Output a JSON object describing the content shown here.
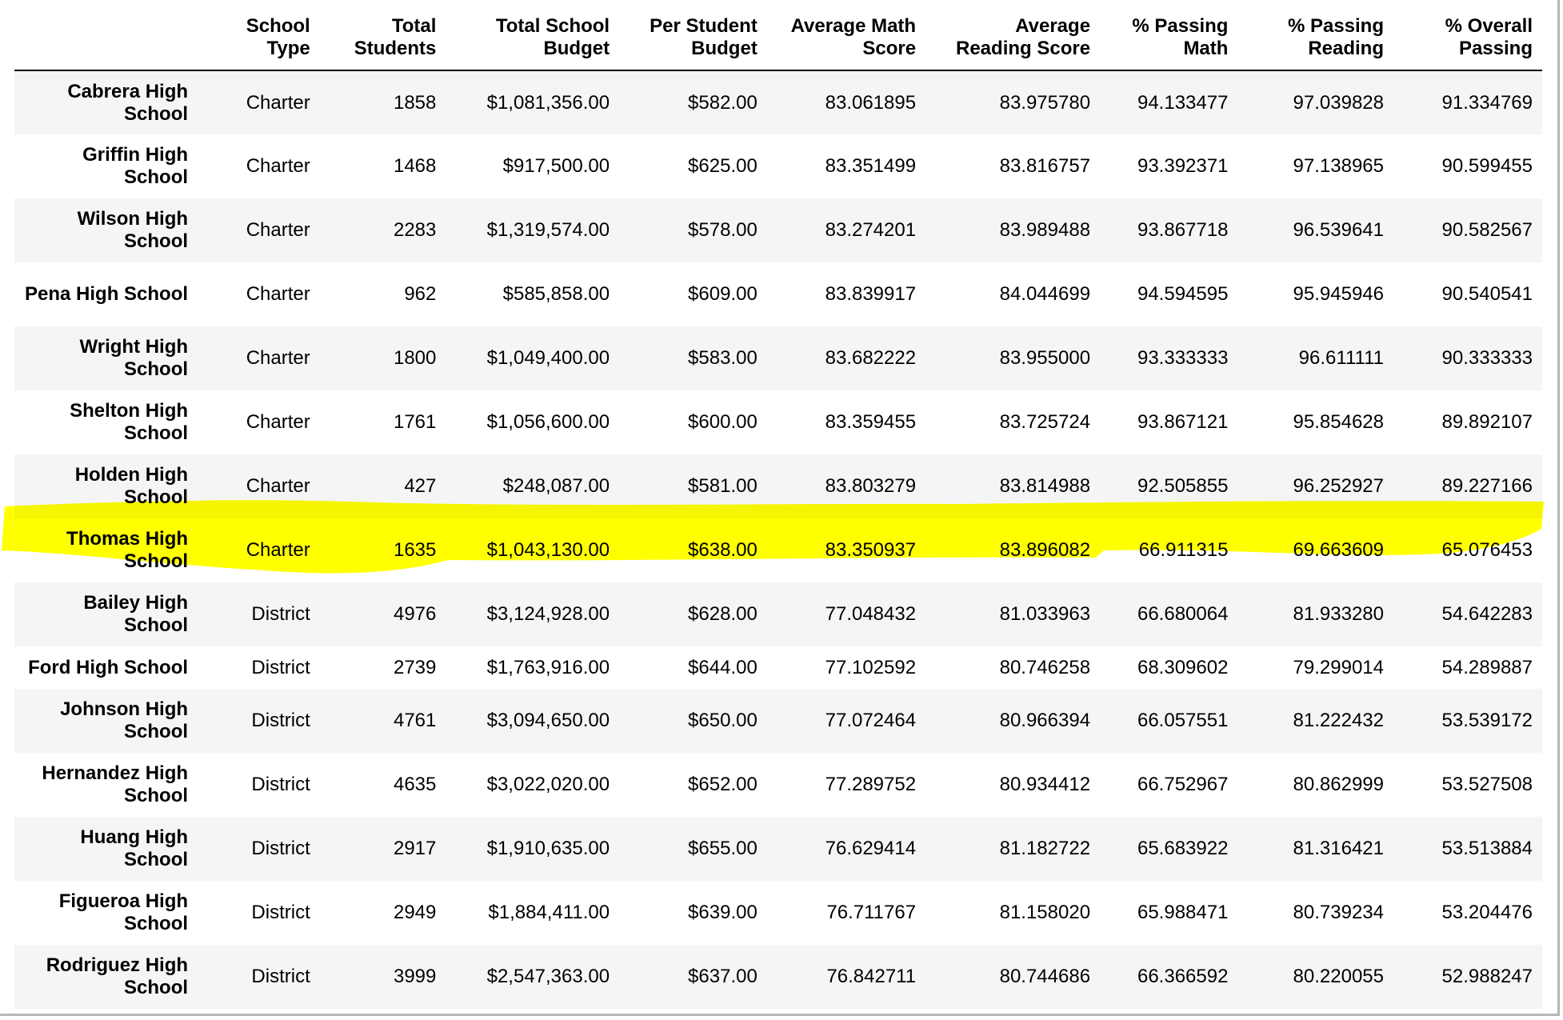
{
  "table": {
    "columns": [
      "",
      "School Type",
      "Total Students",
      "Total School Budget",
      "Per Student Budget",
      "Average Math Score",
      "Average Reading Score",
      "% Passing Math",
      "% Passing Reading",
      "% Overall Passing"
    ],
    "rows": [
      {
        "school": "Cabrera High School",
        "type": "Charter",
        "students": "1858",
        "budget": "$1,081,356.00",
        "per_student": "$582.00",
        "avg_math": "83.061895",
        "avg_reading": "83.975780",
        "pass_math": "94.133477",
        "pass_reading": "97.039828",
        "overall": "91.334769"
      },
      {
        "school": "Griffin High School",
        "type": "Charter",
        "students": "1468",
        "budget": "$917,500.00",
        "per_student": "$625.00",
        "avg_math": "83.351499",
        "avg_reading": "83.816757",
        "pass_math": "93.392371",
        "pass_reading": "97.138965",
        "overall": "90.599455"
      },
      {
        "school": "Wilson High School",
        "type": "Charter",
        "students": "2283",
        "budget": "$1,319,574.00",
        "per_student": "$578.00",
        "avg_math": "83.274201",
        "avg_reading": "83.989488",
        "pass_math": "93.867718",
        "pass_reading": "96.539641",
        "overall": "90.582567"
      },
      {
        "school": "Pena High School",
        "type": "Charter",
        "students": "962",
        "budget": "$585,858.00",
        "per_student": "$609.00",
        "avg_math": "83.839917",
        "avg_reading": "84.044699",
        "pass_math": "94.594595",
        "pass_reading": "95.945946",
        "overall": "90.540541"
      },
      {
        "school": "Wright High School",
        "type": "Charter",
        "students": "1800",
        "budget": "$1,049,400.00",
        "per_student": "$583.00",
        "avg_math": "83.682222",
        "avg_reading": "83.955000",
        "pass_math": "93.333333",
        "pass_reading": "96.611111",
        "overall": "90.333333"
      },
      {
        "school": "Shelton High School",
        "type": "Charter",
        "students": "1761",
        "budget": "$1,056,600.00",
        "per_student": "$600.00",
        "avg_math": "83.359455",
        "avg_reading": "83.725724",
        "pass_math": "93.867121",
        "pass_reading": "95.854628",
        "overall": "89.892107"
      },
      {
        "school": "Holden High School",
        "type": "Charter",
        "students": "427",
        "budget": "$248,087.00",
        "per_student": "$581.00",
        "avg_math": "83.803279",
        "avg_reading": "83.814988",
        "pass_math": "92.505855",
        "pass_reading": "96.252927",
        "overall": "89.227166"
      },
      {
        "school": "Thomas High School",
        "type": "Charter",
        "students": "1635",
        "budget": "$1,043,130.00",
        "per_student": "$638.00",
        "avg_math": "83.350937",
        "avg_reading": "83.896082",
        "pass_math": "66.911315",
        "pass_reading": "69.663609",
        "overall": "65.076453"
      },
      {
        "school": "Bailey High School",
        "type": "District",
        "students": "4976",
        "budget": "$3,124,928.00",
        "per_student": "$628.00",
        "avg_math": "77.048432",
        "avg_reading": "81.033963",
        "pass_math": "66.680064",
        "pass_reading": "81.933280",
        "overall": "54.642283"
      },
      {
        "school": "Ford High School",
        "type": "District",
        "students": "2739",
        "budget": "$1,763,916.00",
        "per_student": "$644.00",
        "avg_math": "77.102592",
        "avg_reading": "80.746258",
        "pass_math": "68.309602",
        "pass_reading": "79.299014",
        "overall": "54.289887"
      },
      {
        "school": "Johnson High School",
        "type": "District",
        "students": "4761",
        "budget": "$3,094,650.00",
        "per_student": "$650.00",
        "avg_math": "77.072464",
        "avg_reading": "80.966394",
        "pass_math": "66.057551",
        "pass_reading": "81.222432",
        "overall": "53.539172"
      },
      {
        "school": "Hernandez High School",
        "type": "District",
        "students": "4635",
        "budget": "$3,022,020.00",
        "per_student": "$652.00",
        "avg_math": "77.289752",
        "avg_reading": "80.934412",
        "pass_math": "66.752967",
        "pass_reading": "80.862999",
        "overall": "53.527508"
      },
      {
        "school": "Huang High School",
        "type": "District",
        "students": "2917",
        "budget": "$1,910,635.00",
        "per_student": "$655.00",
        "avg_math": "76.629414",
        "avg_reading": "81.182722",
        "pass_math": "65.683922",
        "pass_reading": "81.316421",
        "overall": "53.513884"
      },
      {
        "school": "Figueroa High School",
        "type": "District",
        "students": "2949",
        "budget": "$1,884,411.00",
        "per_student": "$639.00",
        "avg_math": "76.711767",
        "avg_reading": "81.158020",
        "pass_math": "65.988471",
        "pass_reading": "80.739234",
        "overall": "53.204476"
      },
      {
        "school": "Rodriguez High School",
        "type": "District",
        "students": "3999",
        "budget": "$2,547,363.00",
        "per_student": "$637.00",
        "avg_math": "76.842711",
        "avg_reading": "80.744686",
        "pass_math": "66.366592",
        "pass_reading": "80.220055",
        "overall": "52.988247"
      }
    ]
  },
  "highlight": {
    "row": "Thomas High School",
    "color": "#ffff00"
  },
  "colors": {
    "row_stripe": "#f5f5f5",
    "header_rule": "#000000"
  }
}
